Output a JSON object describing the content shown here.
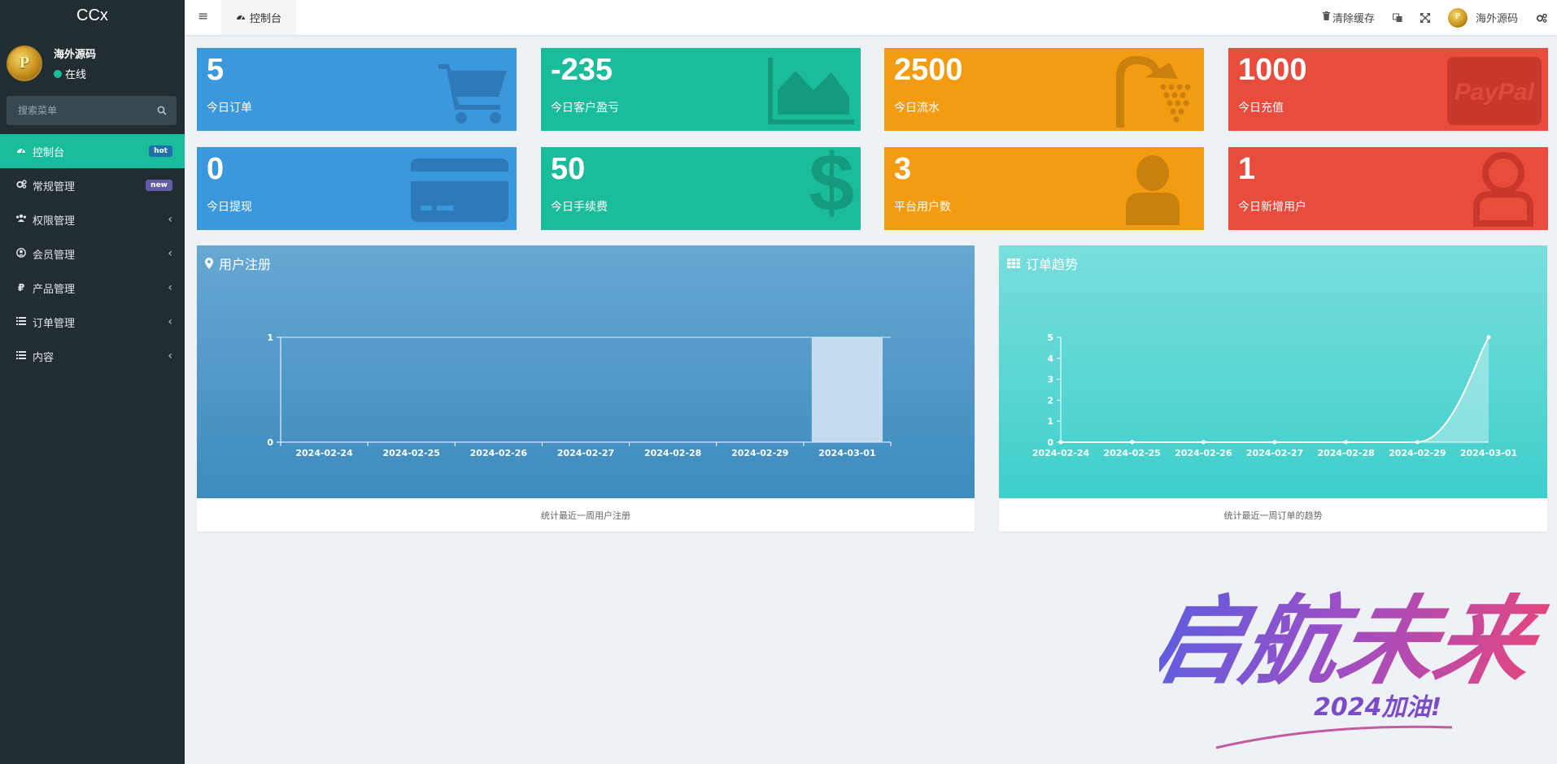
{
  "app": {
    "brand": "CCx"
  },
  "user": {
    "name": "海外源码",
    "status": "在线",
    "avatar_letter": "P"
  },
  "sidebar": {
    "search_placeholder": "搜索菜单",
    "items": [
      {
        "label": "控制台",
        "icon": "dashboard-icon",
        "badge": "hot",
        "active": true
      },
      {
        "label": "常规管理",
        "icon": "cogs-icon",
        "badge": "new"
      },
      {
        "label": "权限管理",
        "icon": "group-icon",
        "chevron": "‹"
      },
      {
        "label": "会员管理",
        "icon": "user-circle-icon",
        "chevron": "‹"
      },
      {
        "label": "产品管理",
        "icon": "ruble-icon",
        "chevron": "‹"
      },
      {
        "label": "订单管理",
        "icon": "list-icon",
        "chevron": "‹"
      },
      {
        "label": "内容",
        "icon": "list-icon",
        "chevron": "‹"
      }
    ]
  },
  "topbar": {
    "tab_label": "控制台",
    "clear_cache": "清除缓存",
    "user_name": "海外源码"
  },
  "stats": [
    {
      "value": "5",
      "label": "今日订单",
      "color": "#3c98dc",
      "icon": "shopping-cart-icon"
    },
    {
      "value": "-235",
      "label": "今日客户盈亏",
      "color": "#1abc9c",
      "icon": "area-chart-icon"
    },
    {
      "value": "2500",
      "label": "今日流水",
      "color": "#f39c12",
      "icon": "shower-icon"
    },
    {
      "value": "1000",
      "label": "今日充值",
      "color": "#e74c3c",
      "icon": "paypal-icon"
    },
    {
      "value": "0",
      "label": "今日提现",
      "color": "#3c98dc",
      "icon": "credit-card-icon"
    },
    {
      "value": "50",
      "label": "今日手续费",
      "color": "#1abc9c",
      "icon": "dollar-icon"
    },
    {
      "value": "3",
      "label": "平台用户数",
      "color": "#f39c12",
      "icon": "user-icon"
    },
    {
      "value": "1",
      "label": "今日新增用户",
      "color": "#e74c3c",
      "icon": "user-outline-icon"
    }
  ],
  "panels": {
    "register": {
      "title": "用户注册",
      "footer": "统计最近一周用户注册",
      "icon": "map-marker-icon"
    },
    "orders": {
      "title": "订单趋势",
      "footer": "统计最近一周订单的趋势",
      "icon": "grid-icon"
    }
  },
  "chart_data": [
    {
      "type": "bar",
      "categories": [
        "2024-02-24",
        "2024-02-25",
        "2024-02-26",
        "2024-02-27",
        "2024-02-28",
        "2024-02-29",
        "2024-03-01"
      ],
      "values": [
        0,
        0,
        0,
        0,
        0,
        0,
        1
      ],
      "ylim": [
        0,
        1
      ],
      "yticks": [
        0,
        1
      ]
    },
    {
      "type": "area",
      "categories": [
        "2024-02-24",
        "2024-02-25",
        "2024-02-26",
        "2024-02-27",
        "2024-02-28",
        "2024-02-29",
        "2024-03-01"
      ],
      "values": [
        0,
        0,
        0,
        0,
        0,
        0,
        5
      ],
      "ylim": [
        0,
        5
      ],
      "yticks": [
        0,
        1,
        2,
        3,
        4,
        5
      ]
    }
  ],
  "watermark": {
    "text": "启航未来",
    "sub": "2024加油!"
  }
}
